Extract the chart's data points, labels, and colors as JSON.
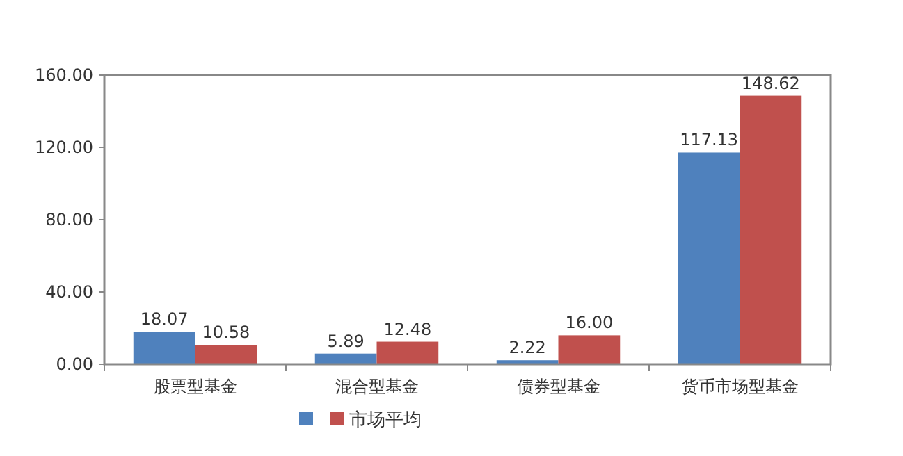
{
  "chart_data": {
    "type": "bar",
    "categories": [
      "股票型基金",
      "混合型基金",
      "债券型基金",
      "货币市场型基金"
    ],
    "series": [
      {
        "color": "#4f81bd",
        "values": [
          18.07,
          5.89,
          2.22,
          117.13
        ]
      },
      {
        "name": "市场平均",
        "color": "#c0504d",
        "values": [
          10.58,
          12.48,
          16.0,
          148.62
        ]
      }
    ],
    "value_labels": [
      [
        "18.07",
        "5.89",
        "2.22",
        "117.13"
      ],
      [
        "10.58",
        "12.48",
        "16.00",
        "148.62"
      ]
    ],
    "ylim": [
      0,
      160
    ],
    "yticks": [
      {
        "value": 0,
        "label": "0.00"
      },
      {
        "value": 40,
        "label": "40.00"
      },
      {
        "value": 80,
        "label": "80.00"
      },
      {
        "value": 120,
        "label": "120.00"
      },
      {
        "value": 160,
        "label": "160.00"
      }
    ],
    "grid": false,
    "legend": "bottom"
  }
}
